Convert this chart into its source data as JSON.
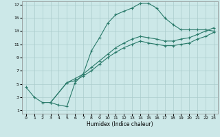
{
  "xlabel": "Humidex (Indice chaleur)",
  "bg_color": "#cce8e8",
  "grid_color": "#aacccc",
  "line_color": "#2a7a6a",
  "xlim": [
    -0.5,
    23.5
  ],
  "ylim": [
    0.5,
    17.5
  ],
  "xticks": [
    0,
    1,
    2,
    3,
    4,
    5,
    6,
    7,
    8,
    9,
    10,
    11,
    12,
    13,
    14,
    15,
    16,
    17,
    18,
    19,
    20,
    21,
    22,
    23
  ],
  "yticks": [
    1,
    3,
    5,
    7,
    9,
    11,
    13,
    15,
    17
  ],
  "line1_x": [
    0,
    1,
    2,
    3,
    4,
    5,
    6,
    7,
    8,
    9,
    10,
    11,
    12,
    13,
    14,
    15,
    16,
    17,
    18,
    19,
    20,
    21,
    22,
    23
  ],
  "line1_y": [
    4.5,
    3.0,
    2.2,
    2.2,
    1.8,
    1.6,
    5.2,
    6.5,
    10.0,
    12.0,
    14.2,
    15.5,
    16.0,
    16.5,
    17.2,
    17.2,
    16.5,
    15.0,
    14.0,
    13.2,
    13.2,
    13.2,
    13.2,
    13.0
  ],
  "line2_x": [
    3,
    5,
    6,
    7,
    8,
    9,
    10,
    11,
    12,
    13,
    14,
    15,
    16,
    17,
    18,
    19,
    20,
    21,
    22,
    23
  ],
  "line2_y": [
    2.2,
    5.2,
    5.8,
    6.5,
    7.5,
    8.5,
    9.5,
    10.5,
    11.2,
    11.8,
    12.2,
    12.0,
    11.8,
    11.5,
    11.5,
    11.8,
    12.0,
    12.5,
    13.0,
    13.5
  ],
  "line3_x": [
    3,
    5,
    6,
    7,
    8,
    9,
    10,
    11,
    12,
    13,
    14,
    15,
    16,
    17,
    18,
    19,
    20,
    21,
    22,
    23
  ],
  "line3_y": [
    2.2,
    5.2,
    5.5,
    6.2,
    7.0,
    8.0,
    9.0,
    9.8,
    10.5,
    11.0,
    11.5,
    11.2,
    11.0,
    10.8,
    10.8,
    11.0,
    11.2,
    11.8,
    12.2,
    12.8
  ]
}
